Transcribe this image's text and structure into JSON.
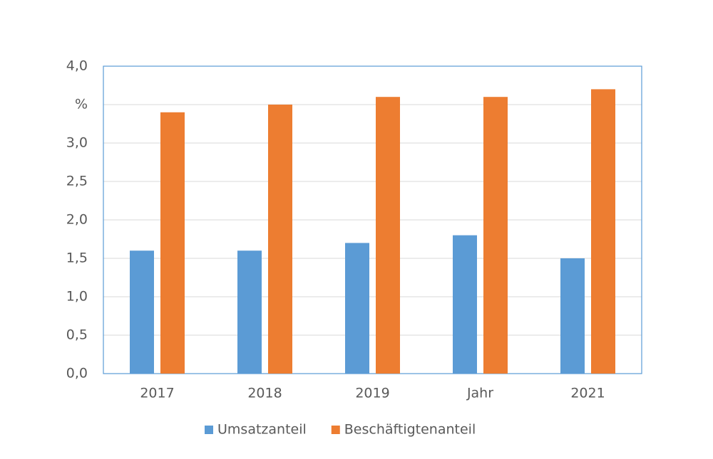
{
  "chart_data": {
    "type": "bar",
    "categories": [
      "2017",
      "2018",
      "2019",
      "Jahr",
      "2021"
    ],
    "series": [
      {
        "name": "Umsatzanteil",
        "color": "#5b9bd5",
        "values": [
          1.6,
          1.6,
          1.7,
          1.8,
          1.5
        ]
      },
      {
        "name": "Beschäftigtenanteil",
        "color": "#ed7d31",
        "values": [
          3.4,
          3.5,
          3.6,
          3.6,
          3.7
        ]
      }
    ],
    "ylim": [
      0,
      4
    ],
    "yticks": [
      {
        "value": 0,
        "label": "0,0"
      },
      {
        "value": 0.5,
        "label": "0,5"
      },
      {
        "value": 1,
        "label": "1,0"
      },
      {
        "value": 1.5,
        "label": "1,5"
      },
      {
        "value": 2,
        "label": "2,0"
      },
      {
        "value": 2.5,
        "label": "2,5"
      },
      {
        "value": 3,
        "label": "3,0"
      },
      {
        "value": 3.5,
        "label": "%"
      },
      {
        "value": 4,
        "label": "4,0"
      }
    ],
    "grid": true,
    "legend": "bottom"
  }
}
